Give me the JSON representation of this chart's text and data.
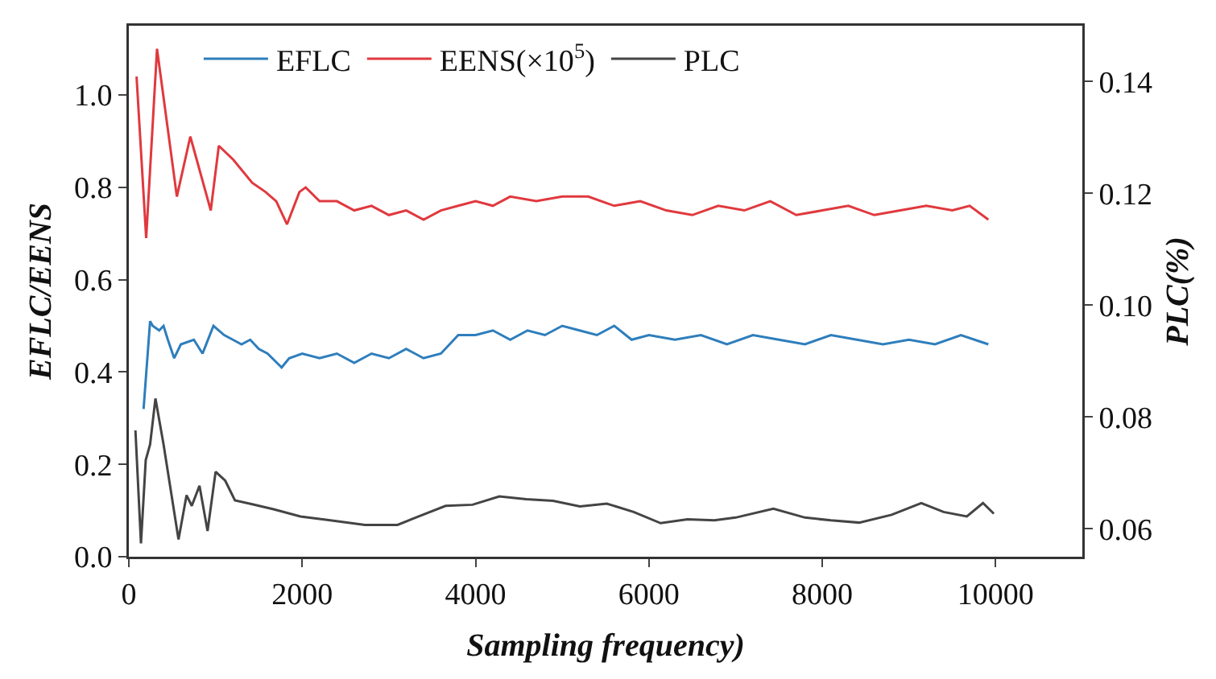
{
  "chart_data": {
    "type": "line",
    "xlabel": "Sampling frequency)",
    "ylabel": "EFLC/EENS",
    "y2label": "PLC(%)",
    "xlim": [
      0,
      11000
    ],
    "xticks": [
      0,
      2000,
      4000,
      6000,
      8000,
      10000
    ],
    "ylim": [
      0,
      1.15
    ],
    "yticks": [
      {
        "value": 0,
        "label": "0.0"
      },
      {
        "value": 0.2,
        "label": "0.2"
      },
      {
        "value": 0.4,
        "label": "0.4"
      },
      {
        "value": 0.6,
        "label": "0.6"
      },
      {
        "value": 0.8,
        "label": "0.8"
      },
      {
        "value": 1,
        "label": "1.0"
      }
    ],
    "y2lim": [
      0.055,
      0.15
    ],
    "y2ticks": [
      0.06,
      0.08,
      {
        "value": 0.1,
        "label": "0.10"
      },
      0.12,
      0.14
    ],
    "grid": false,
    "legend": "top",
    "marker": "none",
    "line_style": "solid",
    "series": [
      {
        "name": "EFLC",
        "color": "#2e7ebc",
        "x": [
          170,
          245,
          275,
          350,
          400,
          450,
          523,
          600,
          750,
          850,
          976,
          1100,
          1200,
          1300,
          1400,
          1500,
          1600,
          1763,
          1850,
          2000,
          2200,
          2400,
          2600,
          2800,
          3000,
          3200,
          3400,
          3600,
          3700,
          3800,
          4000,
          4200,
          4400,
          4600,
          4800,
          5000,
          5200,
          5400,
          5600,
          5800,
          6000,
          6300,
          6600,
          6900,
          7200,
          7500,
          7800,
          8100,
          8400,
          8700,
          9000,
          9300,
          9600,
          9916
        ],
        "values": [
          0.32,
          0.51,
          0.5,
          0.49,
          0.5,
          0.47,
          0.43,
          0.46,
          0.47,
          0.44,
          0.5,
          0.48,
          0.47,
          0.46,
          0.47,
          0.45,
          0.44,
          0.41,
          0.43,
          0.44,
          0.43,
          0.44,
          0.42,
          0.44,
          0.43,
          0.45,
          0.43,
          0.44,
          0.46,
          0.48,
          0.48,
          0.49,
          0.47,
          0.49,
          0.48,
          0.5,
          0.49,
          0.48,
          0.5,
          0.47,
          0.48,
          0.47,
          0.48,
          0.46,
          0.48,
          0.47,
          0.46,
          0.48,
          0.47,
          0.46,
          0.47,
          0.46,
          0.48,
          0.46
        ]
      },
      {
        "name": "EENS(×10$^{5}$)",
        "color": "#e0393e",
        "x": [
          89,
          200,
          325,
          554,
          709,
          945,
          1038,
          1205,
          1423,
          1577,
          1700,
          1825,
          1968,
          2040,
          2200,
          2400,
          2600,
          2800,
          3000,
          3200,
          3400,
          3600,
          3800,
          4000,
          4200,
          4400,
          4700,
          5000,
          5300,
          5600,
          5900,
          6200,
          6500,
          6800,
          7100,
          7400,
          7700,
          8000,
          8300,
          8600,
          8900,
          9200,
          9500,
          9700,
          9916
        ],
        "values": [
          1.04,
          0.69,
          1.1,
          0.78,
          0.91,
          0.75,
          0.89,
          0.86,
          0.81,
          0.79,
          0.77,
          0.72,
          0.79,
          0.8,
          0.77,
          0.77,
          0.75,
          0.76,
          0.74,
          0.75,
          0.73,
          0.75,
          0.76,
          0.77,
          0.76,
          0.78,
          0.77,
          0.78,
          0.78,
          0.76,
          0.77,
          0.75,
          0.74,
          0.76,
          0.75,
          0.77,
          0.74,
          0.75,
          0.76,
          0.74,
          0.75,
          0.76,
          0.75,
          0.76,
          0.73
        ]
      },
      {
        "name": "PLC",
        "color": "#444444",
        "axis": "y2",
        "x": [
          76,
          140,
          195,
          245,
          307,
          400,
          573,
          666,
          726,
          815,
          908,
          1001,
          1112,
          1224,
          1423,
          1670,
          1980,
          2290,
          2725,
          3100,
          3344,
          3654,
          3965,
          4274,
          4584,
          4894,
          5204,
          5514,
          5824,
          6135,
          6445,
          6755,
          7000,
          7436,
          7800,
          8100,
          8426,
          8800,
          9142,
          9400,
          9668,
          9854,
          9979
        ],
        "values": [
          0.0776,
          0.0574,
          0.0723,
          0.0751,
          0.0833,
          0.0751,
          0.0581,
          0.066,
          0.0641,
          0.0677,
          0.0596,
          0.0702,
          0.0686,
          0.0651,
          0.0644,
          0.0635,
          0.0622,
          0.0616,
          0.0607,
          0.0607,
          0.0622,
          0.0641,
          0.0643,
          0.0658,
          0.0653,
          0.065,
          0.064,
          0.0645,
          0.063,
          0.061,
          0.0617,
          0.0615,
          0.062,
          0.0636,
          0.062,
          0.0615,
          0.0611,
          0.0625,
          0.0646,
          0.063,
          0.0622,
          0.0646,
          0.0627
        ]
      }
    ]
  }
}
